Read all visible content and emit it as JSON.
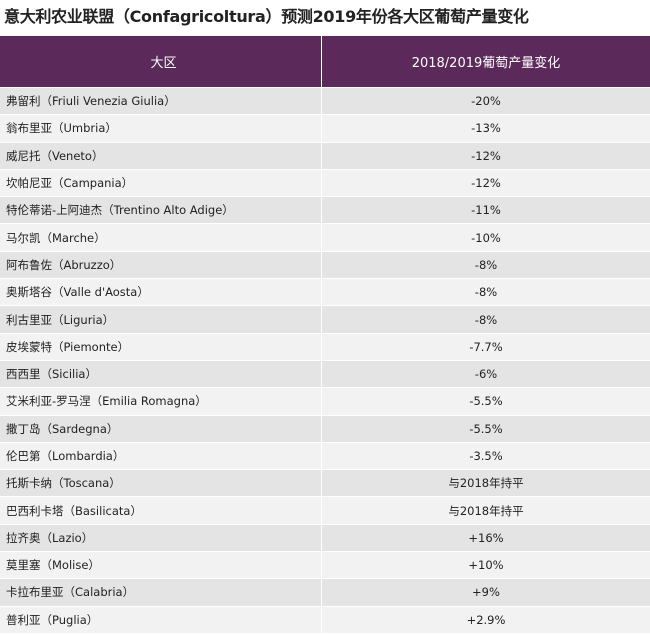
{
  "header": {
    "title": "意大利农业联盟（Confagricoltura）预测2019年份各大区葡萄产量变化"
  },
  "table": {
    "columns": [
      "大区",
      "2018/2019葡萄产量变化"
    ],
    "rows": [
      [
        "弗留利（Friuli Venezia Giulia）",
        "-20%"
      ],
      [
        "翁布里亚（Umbria）",
        "-13%"
      ],
      [
        "威尼托（Veneto）",
        "-12%"
      ],
      [
        "坎帕尼亚（Campania）",
        "-12%"
      ],
      [
        "特伦蒂诺-上阿迪杰（Trentino Alto Adige）",
        "-11%"
      ],
      [
        "马尔凯（Marche）",
        "-10%"
      ],
      [
        "阿布鲁佐（Abruzzo）",
        "-8%"
      ],
      [
        "奥斯塔谷（Valle d'Aosta）",
        "-8%"
      ],
      [
        "利古里亚（Liguria）",
        "-8%"
      ],
      [
        "皮埃蒙特（Piemonte）",
        "-7.7%"
      ],
      [
        "西西里（Sicilia）",
        "-6%"
      ],
      [
        "艾米利亚-罗马涅（Emilia Romagna）",
        "-5.5%"
      ],
      [
        "撒丁岛（Sardegna）",
        "-5.5%"
      ],
      [
        "伦巴第（Lombardia）",
        "-3.5%"
      ],
      [
        "托斯卡纳（Toscana）",
        "与2018年持平"
      ],
      [
        "巴西利卡塔（Basilicata）",
        "与2018年持平"
      ],
      [
        "拉齐奥（Lazio）",
        "+16%"
      ],
      [
        "莫里塞（Molise）",
        "+10%"
      ],
      [
        "卡拉布里亚（Calabria）",
        "+9%"
      ],
      [
        "普利亚（Puglia）",
        "+2.9%"
      ]
    ]
  }
}
